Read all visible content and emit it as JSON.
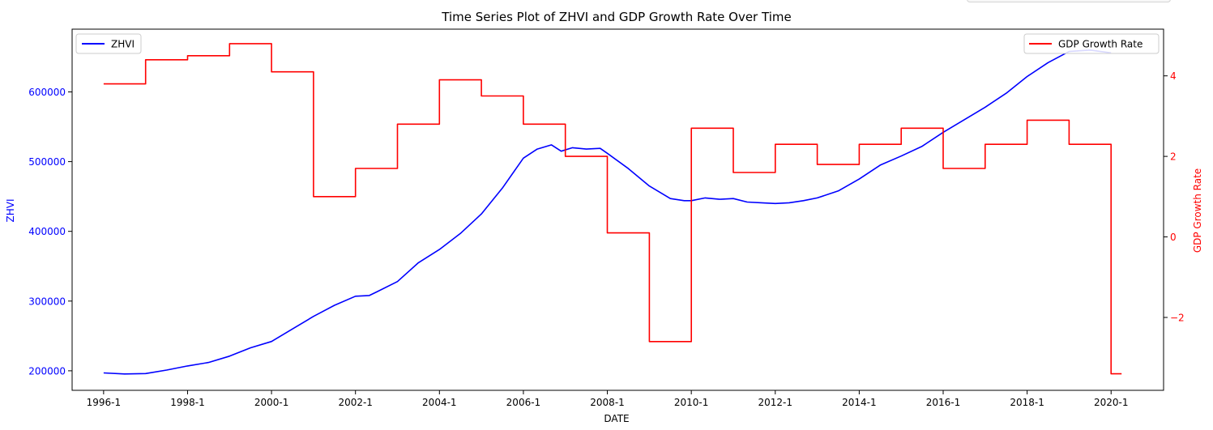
{
  "chart_data": {
    "type": "line",
    "title": "Time Series Plot of ZHVI and GDP Growth Rate Over Time",
    "xlabel": "DATE",
    "xlim": [
      1995.25,
      2021.25
    ],
    "x_ticks": [
      {
        "value": 1996,
        "label": "1996-1"
      },
      {
        "value": 1998,
        "label": "1998-1"
      },
      {
        "value": 2000,
        "label": "2000-1"
      },
      {
        "value": 2002,
        "label": "2002-1"
      },
      {
        "value": 2004,
        "label": "2004-1"
      },
      {
        "value": 2006,
        "label": "2006-1"
      },
      {
        "value": 2008,
        "label": "2008-1"
      },
      {
        "value": 2010,
        "label": "2010-1"
      },
      {
        "value": 2012,
        "label": "2012-1"
      },
      {
        "value": 2014,
        "label": "2014-1"
      },
      {
        "value": 2016,
        "label": "2016-1"
      },
      {
        "value": 2018,
        "label": "2018-1"
      },
      {
        "value": 2020,
        "label": "2020-1"
      }
    ],
    "grid": false,
    "y_left": {
      "label": "ZHVI",
      "color": "#0000ff",
      "ylim": [
        172000,
        690000
      ],
      "ticks": [
        {
          "value": 200000,
          "label": "200000"
        },
        {
          "value": 300000,
          "label": "300000"
        },
        {
          "value": 400000,
          "label": "400000"
        },
        {
          "value": 500000,
          "label": "500000"
        },
        {
          "value": 600000,
          "label": "600000"
        }
      ]
    },
    "y_right": {
      "label": "GDP Growth Rate",
      "color": "#ff0000",
      "ylim": [
        -3.81,
        5.16
      ],
      "ticks": [
        {
          "value": -2,
          "label": "−2"
        },
        {
          "value": 0,
          "label": "0"
        },
        {
          "value": 2,
          "label": "2"
        },
        {
          "value": 4,
          "label": "4"
        }
      ]
    },
    "series": [
      {
        "name": "ZHVI",
        "axis": "left",
        "color": "#0000ff",
        "legend": "top-left",
        "x": [
          1996.0,
          1996.5,
          1997.0,
          1997.5,
          1998.0,
          1998.5,
          1999.0,
          1999.5,
          2000.0,
          2000.5,
          2001.0,
          2001.5,
          2002.0,
          2002.33,
          2002.5,
          2003.0,
          2003.5,
          2004.0,
          2004.5,
          2005.0,
          2005.5,
          2006.0,
          2006.33,
          2006.67,
          2006.9,
          2007.17,
          2007.5,
          2007.83,
          2008.0,
          2008.5,
          2009.0,
          2009.5,
          2009.83,
          2010.0,
          2010.33,
          2010.67,
          2011.0,
          2011.33,
          2011.67,
          2012.0,
          2012.33,
          2012.67,
          2013.0,
          2013.5,
          2014.0,
          2014.5,
          2015.0,
          2015.5,
          2016.0,
          2016.5,
          2017.0,
          2017.5,
          2018.0,
          2018.5,
          2019.0,
          2019.5,
          2020.0
        ],
        "y": [
          197000,
          195500,
          196000,
          201000,
          207000,
          212000,
          221000,
          233000,
          242000,
          260000,
          278000,
          294000,
          307000,
          308000,
          313000,
          328000,
          355000,
          374000,
          397000,
          425000,
          462000,
          505000,
          518000,
          524000,
          515000,
          520000,
          518000,
          519000,
          512000,
          490000,
          465000,
          447000,
          444000,
          444000,
          448000,
          446000,
          447000,
          442000,
          441000,
          440000,
          441000,
          444000,
          448000,
          458000,
          475000,
          495000,
          508000,
          522000,
          542000,
          560000,
          578000,
          598000,
          622000,
          642000,
          658000,
          660000,
          656000
        ]
      },
      {
        "name": "GDP Growth Rate",
        "axis": "right",
        "color": "#ff0000",
        "legend": "top-right",
        "step": true,
        "x_end": 2020.25,
        "x": [
          1996,
          1997,
          1998,
          1999,
          2000,
          2001,
          2002,
          2003,
          2004,
          2005,
          2006,
          2007,
          2008,
          2009,
          2010,
          2011,
          2012,
          2013,
          2014,
          2015,
          2016,
          2017,
          2018,
          2019,
          2020
        ],
        "y": [
          3.8,
          4.4,
          4.5,
          4.8,
          4.1,
          1.0,
          1.7,
          2.8,
          3.9,
          3.5,
          2.8,
          2.0,
          0.1,
          -2.6,
          2.7,
          1.6,
          2.3,
          1.8,
          2.3,
          2.7,
          1.7,
          2.3,
          2.9,
          2.3,
          -3.4
        ]
      }
    ]
  }
}
